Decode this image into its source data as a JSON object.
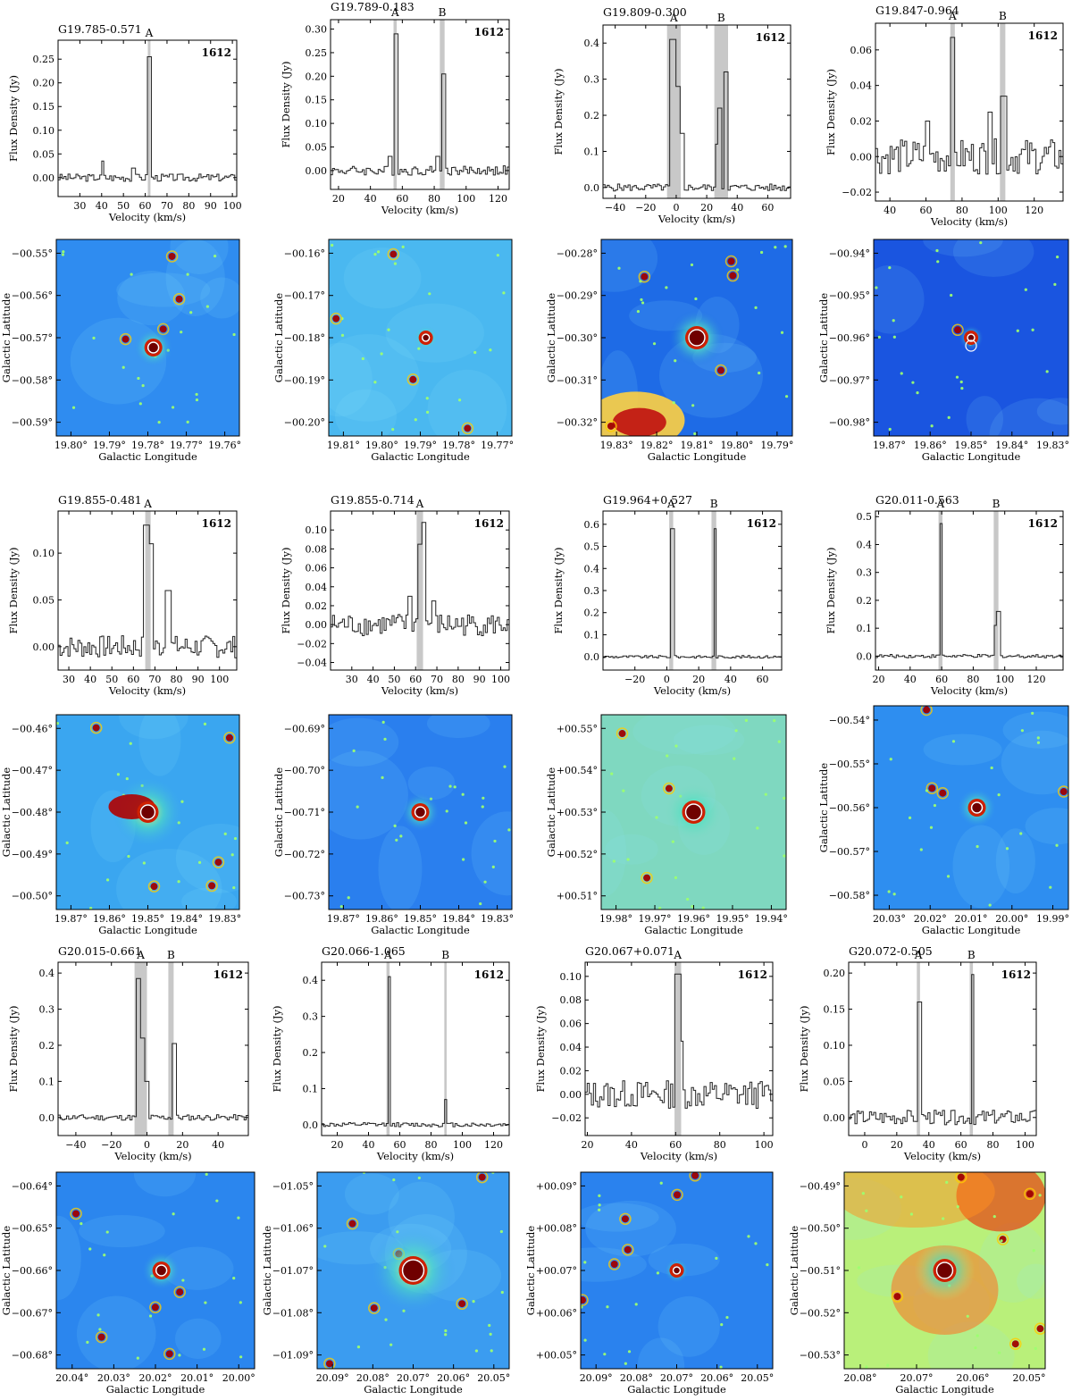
{
  "common": {
    "spec_ylabel": "Flux Density (Jy)",
    "spec_xlabel": "Velocity (km/s)",
    "map_ylabel": "Galactic Latitude",
    "map_xlabel": "Galactic Longitude",
    "line_label": "1612"
  },
  "chart_data": [
    {
      "type": "line",
      "title": "G19.785-0.571",
      "xlim": [
        20,
        102
      ],
      "ylim": [
        -0.04,
        0.29
      ],
      "xticks": [
        "30",
        "40",
        "50",
        "60",
        "70",
        "80",
        "90",
        "100"
      ],
      "xtick_vals": [
        30,
        40,
        50,
        60,
        70,
        80,
        90,
        100
      ],
      "yticks": [
        "0.00",
        "0.05",
        "0.10",
        "0.15",
        "0.20",
        "0.25"
      ],
      "ytick_vals": [
        0,
        0.05,
        0.1,
        0.15,
        0.2,
        0.25
      ],
      "bands": [
        {
          "name": "A",
          "x0": 61.2,
          "x1": 62.4
        }
      ],
      "peaks": [
        {
          "x": 61.8,
          "y": 0.255,
          "w": 0.8
        }
      ],
      "noise": 0.008,
      "bumps": [
        {
          "x": 40,
          "y": 0.035
        },
        {
          "x": 54,
          "y": 0.02
        }
      ]
    },
    {
      "type": "line",
      "title": "G19.789-0.183",
      "xlim": [
        15,
        127
      ],
      "ylim": [
        -0.04,
        0.32
      ],
      "xticks": [
        "20",
        "40",
        "60",
        "80",
        "100",
        "120"
      ],
      "xtick_vals": [
        20,
        40,
        60,
        80,
        100,
        120
      ],
      "yticks": [
        "0.00",
        "0.05",
        "0.10",
        "0.15",
        "0.20",
        "0.25",
        "0.30"
      ],
      "ytick_vals": [
        0,
        0.05,
        0.1,
        0.15,
        0.2,
        0.25,
        0.3
      ],
      "bands": [
        {
          "name": "A",
          "x0": 54.5,
          "x1": 56.5
        },
        {
          "name": "B",
          "x0": 83.5,
          "x1": 86.5
        }
      ],
      "peaks": [
        {
          "x": 55.5,
          "y": 0.29,
          "w": 1
        },
        {
          "x": 85.3,
          "y": 0.205,
          "w": 1.3
        }
      ],
      "noise": 0.01,
      "bumps": [
        {
          "x": 52,
          "y": 0.03
        },
        {
          "x": 82,
          "y": 0.03
        }
      ]
    },
    {
      "type": "line",
      "title": "G19.809-0.300",
      "xlim": [
        -48,
        75
      ],
      "ylim": [
        -0.03,
        0.45
      ],
      "xticks": [
        "−40",
        "−20",
        "0",
        "20",
        "40",
        "60"
      ],
      "xtick_vals": [
        -40,
        -20,
        0,
        20,
        40,
        60
      ],
      "yticks": [
        "0.0",
        "0.1",
        "0.2",
        "0.3",
        "0.4"
      ],
      "ytick_vals": [
        0,
        0.1,
        0.2,
        0.3,
        0.4
      ],
      "bands": [
        {
          "name": "A",
          "x0": -6,
          "x1": 3
        },
        {
          "name": "B",
          "x0": 25,
          "x1": 34
        }
      ],
      "peaks": [
        {
          "x": -3,
          "y": 0.41,
          "w": 1.5
        },
        {
          "x": 0,
          "y": 0.28,
          "w": 1.5
        },
        {
          "x": 2,
          "y": 0.15,
          "w": 2
        },
        {
          "x": 28,
          "y": 0.22,
          "w": 1.5
        },
        {
          "x": 31.5,
          "y": 0.32,
          "w": 1.3
        },
        {
          "x": 26,
          "y": 0.12,
          "w": 1.5
        }
      ],
      "noise": 0.01,
      "bumps": []
    },
    {
      "type": "line",
      "title": "G19.847-0.964",
      "xlim": [
        32,
        136
      ],
      "ylim": [
        -0.025,
        0.075
      ],
      "xticks": [
        "40",
        "60",
        "80",
        "100",
        "120"
      ],
      "xtick_vals": [
        40,
        60,
        80,
        100,
        120
      ],
      "yticks": [
        "−0.02",
        "0.00",
        "0.02",
        "0.04",
        "0.06"
      ],
      "ytick_vals": [
        -0.02,
        0,
        0.02,
        0.04,
        0.06
      ],
      "bands": [
        {
          "name": "A",
          "x0": 73.5,
          "x1": 76
        },
        {
          "name": "B",
          "x0": 101,
          "x1": 104
        }
      ],
      "peaks": [
        {
          "x": 74.5,
          "y": 0.067,
          "w": 1
        },
        {
          "x": 102.5,
          "y": 0.034,
          "w": 1.3
        }
      ],
      "noise": 0.01,
      "bumps": [
        {
          "x": 60,
          "y": 0.02
        },
        {
          "x": 95,
          "y": 0.025
        }
      ]
    },
    {
      "type": "line",
      "title": "G19.855-0.481",
      "xlim": [
        25,
        108
      ],
      "ylim": [
        -0.025,
        0.145
      ],
      "xticks": [
        "30",
        "40",
        "50",
        "60",
        "70",
        "80",
        "90",
        "100"
      ],
      "xtick_vals": [
        30,
        40,
        50,
        60,
        70,
        80,
        90,
        100
      ],
      "yticks": [
        "0.00",
        "0.05",
        "0.10"
      ],
      "ytick_vals": [
        0,
        0.05,
        0.1
      ],
      "bands": [
        {
          "name": "A",
          "x0": 65.5,
          "x1": 68
        }
      ],
      "peaks": [
        {
          "x": 65.5,
          "y": 0.13,
          "w": 1.2
        },
        {
          "x": 67,
          "y": 0.11,
          "w": 1.5
        },
        {
          "x": 75.5,
          "y": 0.06,
          "w": 1.5
        }
      ],
      "noise": 0.012,
      "bumps": []
    },
    {
      "type": "line",
      "title": "G19.855-0.714",
      "xlim": [
        20,
        104
      ],
      "ylim": [
        -0.048,
        0.12
      ],
      "xticks": [
        "30",
        "40",
        "50",
        "60",
        "70",
        "80",
        "90",
        "100"
      ],
      "xtick_vals": [
        30,
        40,
        50,
        60,
        70,
        80,
        90,
        100
      ],
      "yticks": [
        "−0.04",
        "−0.02",
        "0.00",
        "0.02",
        "0.04",
        "0.06",
        "0.08",
        "0.10"
      ],
      "ytick_vals": [
        -0.04,
        -0.02,
        0,
        0.02,
        0.04,
        0.06,
        0.08,
        0.1
      ],
      "bands": [
        {
          "name": "A",
          "x0": 60.5,
          "x1": 63.5
        }
      ],
      "peaks": [
        {
          "x": 61.5,
          "y": 0.085,
          "w": 1
        },
        {
          "x": 63,
          "y": 0.108,
          "w": 1
        }
      ],
      "noise": 0.012,
      "bumps": [
        {
          "x": 57,
          "y": 0.03
        },
        {
          "x": 68,
          "y": 0.025
        }
      ]
    },
    {
      "type": "line",
      "title": "G19.964+0.527",
      "xlim": [
        -40,
        72
      ],
      "ylim": [
        -0.06,
        0.66
      ],
      "xticks": [
        "−20",
        "0",
        "20",
        "40",
        "60"
      ],
      "xtick_vals": [
        -20,
        0,
        20,
        40,
        60
      ],
      "yticks": [
        "0.0",
        "0.1",
        "0.2",
        "0.3",
        "0.4",
        "0.5",
        "0.6"
      ],
      "ytick_vals": [
        0,
        0.1,
        0.2,
        0.3,
        0.4,
        0.5,
        0.6
      ],
      "bands": [
        {
          "name": "A",
          "x0": 1.5,
          "x1": 4
        },
        {
          "name": "B",
          "x0": 28,
          "x1": 31
        }
      ],
      "peaks": [
        {
          "x": 2.8,
          "y": 0.58,
          "w": 1
        },
        {
          "x": 29.8,
          "y": 0.58,
          "w": 1
        }
      ],
      "noise": 0.006,
      "bumps": []
    },
    {
      "type": "line",
      "title": "G20.011-0.563",
      "xlim": [
        18,
        137
      ],
      "ylim": [
        -0.05,
        0.52
      ],
      "xticks": [
        "20",
        "40",
        "60",
        "80",
        "100",
        "120"
      ],
      "xtick_vals": [
        20,
        40,
        60,
        80,
        100,
        120
      ],
      "yticks": [
        "0.0",
        "0.1",
        "0.2",
        "0.3",
        "0.4",
        "0.5"
      ],
      "ytick_vals": [
        0,
        0.1,
        0.2,
        0.3,
        0.4,
        0.5
      ],
      "bands": [
        {
          "name": "A",
          "x0": 58,
          "x1": 60.5
        },
        {
          "name": "B",
          "x0": 93,
          "x1": 96
        }
      ],
      "peaks": [
        {
          "x": 59,
          "y": 0.475,
          "w": 1
        },
        {
          "x": 95,
          "y": 0.16,
          "w": 1.3
        },
        {
          "x": 93.5,
          "y": 0.11,
          "w": 1
        }
      ],
      "noise": 0.006,
      "bumps": []
    },
    {
      "type": "line",
      "title": "G20.015-0.661",
      "xlim": [
        -50,
        57
      ],
      "ylim": [
        -0.05,
        0.43
      ],
      "xticks": [
        "−40",
        "−20",
        "0",
        "20",
        "40"
      ],
      "xtick_vals": [
        -40,
        -20,
        0,
        20,
        40
      ],
      "yticks": [
        "0.0",
        "0.1",
        "0.2",
        "0.3",
        "0.4"
      ],
      "ytick_vals": [
        0,
        0.1,
        0.2,
        0.3,
        0.4
      ],
      "bands": [
        {
          "name": "A",
          "x0": -7,
          "x1": 0
        },
        {
          "name": "B",
          "x0": 12,
          "x1": 15
        }
      ],
      "peaks": [
        {
          "x": -5.5,
          "y": 0.385,
          "w": 1.5
        },
        {
          "x": -3.5,
          "y": 0.22,
          "w": 1.5
        },
        {
          "x": -1.5,
          "y": 0.1,
          "w": 1.5
        },
        {
          "x": 15,
          "y": 0.205,
          "w": 1.5
        }
      ],
      "noise": 0.008,
      "bumps": []
    },
    {
      "type": "line",
      "title": "G20.066-1.065",
      "xlim": [
        10,
        130
      ],
      "ylim": [
        -0.03,
        0.45
      ],
      "xticks": [
        "20",
        "40",
        "60",
        "80",
        "100",
        "120"
      ],
      "xtick_vals": [
        20,
        40,
        60,
        80,
        100,
        120
      ],
      "yticks": [
        "0.0",
        "0.1",
        "0.2",
        "0.3",
        "0.4"
      ],
      "ytick_vals": [
        0,
        0.1,
        0.2,
        0.3,
        0.4
      ],
      "bands": [
        {
          "name": "A",
          "x0": 51.5,
          "x1": 53.5
        },
        {
          "name": "B",
          "x0": 88.5,
          "x1": 90
        }
      ],
      "peaks": [
        {
          "x": 52.5,
          "y": 0.41,
          "w": 1
        },
        {
          "x": 89,
          "y": 0.07,
          "w": 0.8
        }
      ],
      "noise": 0.006,
      "bumps": []
    },
    {
      "type": "line",
      "title": "G20.067+0.071",
      "xlim": [
        19,
        104
      ],
      "ylim": [
        -0.035,
        0.112
      ],
      "xticks": [
        "20",
        "40",
        "60",
        "80",
        "100"
      ],
      "xtick_vals": [
        20,
        40,
        60,
        80,
        100
      ],
      "yticks": [
        "−0.02",
        "0.00",
        "0.02",
        "0.04",
        "0.06",
        "0.08",
        "0.10"
      ],
      "ytick_vals": [
        -0.02,
        0,
        0.02,
        0.04,
        0.06,
        0.08,
        0.1
      ],
      "bands": [
        {
          "name": "A",
          "x0": 59.5,
          "x1": 62.5
        }
      ],
      "peaks": [
        {
          "x": 60.5,
          "y": 0.102,
          "w": 1
        },
        {
          "x": 62,
          "y": 0.045,
          "w": 1
        }
      ],
      "noise": 0.012,
      "bumps": []
    },
    {
      "type": "line",
      "title": "G20.072-0.505",
      "xlim": [
        -10,
        107
      ],
      "ylim": [
        -0.025,
        0.215
      ],
      "xticks": [
        "0",
        "20",
        "40",
        "60",
        "80",
        "100"
      ],
      "xtick_vals": [
        0,
        20,
        40,
        60,
        80,
        100
      ],
      "yticks": [
        "0.00",
        "0.05",
        "0.10",
        "0.15",
        "0.20"
      ],
      "ytick_vals": [
        0,
        0.05,
        0.1,
        0.15,
        0.2
      ],
      "bands": [
        {
          "name": "A",
          "x0": 32.5,
          "x1": 34.5
        },
        {
          "name": "B",
          "x0": 65.5,
          "x1": 67.5
        }
      ],
      "peaks": [
        {
          "x": 33.5,
          "y": 0.16,
          "w": 1
        },
        {
          "x": 66.5,
          "y": 0.198,
          "w": 1
        }
      ],
      "noise": 0.01,
      "bumps": []
    }
  ],
  "maps": [
    {
      "xticks": [
        "19.80°",
        "19.79°",
        "19.78°",
        "19.77°",
        "19.76°"
      ],
      "yticks": [
        "−00.55°",
        "−00.56°",
        "−00.57°",
        "−00.58°",
        "−00.59°"
      ],
      "bg": "#2f8cf0",
      "src": [
        0.53,
        0.55
      ],
      "src_size": "medium"
    },
    {
      "xticks": [
        "19.81°",
        "19.80°",
        "19.79°",
        "19.78°",
        "19.77°"
      ],
      "yticks": [
        "−00.16°",
        "−00.17°",
        "−00.18°",
        "−00.19°",
        "−00.20°"
      ],
      "bg": "#4ab8f0",
      "src": [
        0.53,
        0.5
      ],
      "src_size": "small"
    },
    {
      "xticks": [
        "19.83°",
        "19.82°",
        "19.81°",
        "19.80°",
        "19.79°"
      ],
      "yticks": [
        "−00.28°",
        "−00.29°",
        "−00.30°",
        "−00.31°",
        "−00.32°"
      ],
      "bg": "#1e6be6",
      "src": [
        0.5,
        0.5
      ],
      "src_size": "large"
    },
    {
      "xticks": [
        "19.87°",
        "19.86°",
        "19.85°",
        "19.84°",
        "19.83°"
      ],
      "yticks": [
        "−00.94°",
        "−00.95°",
        "−00.96°",
        "−00.97°",
        "−00.98°"
      ],
      "bg": "#1a55e0",
      "src": [
        0.5,
        0.5
      ],
      "src_size": "small"
    },
    {
      "xticks": [
        "19.87°",
        "19.86°",
        "19.85°",
        "19.84°",
        "19.83°"
      ],
      "yticks": [
        "−00.46°",
        "−00.47°",
        "−00.48°",
        "−00.49°",
        "−00.50°"
      ],
      "bg": "#3aa6f0",
      "src": [
        0.5,
        0.5
      ],
      "src_size": "diffuse"
    },
    {
      "xticks": [
        "19.87°",
        "19.86°",
        "19.85°",
        "19.84°",
        "19.83°"
      ],
      "yticks": [
        "−00.69°",
        "−00.70°",
        "−00.71°",
        "−00.72°",
        "−00.73°"
      ],
      "bg": "#2a7fee",
      "src": [
        0.5,
        0.5
      ],
      "src_size": "medium"
    },
    {
      "xticks": [
        "19.98°",
        "19.97°",
        "19.96°",
        "19.95°",
        "19.94°"
      ],
      "yticks": [
        "+00.55°",
        "+00.54°",
        "+00.53°",
        "+00.52°",
        "+00.51°"
      ],
      "bg": "#7fd8c0",
      "src": [
        0.5,
        0.5
      ],
      "src_size": "large"
    },
    {
      "xticks": [
        "20.03°",
        "20.02°",
        "20.01°",
        "20.00°",
        "19.99°"
      ],
      "yticks": [
        "−00.54°",
        "−00.55°",
        "−00.56°",
        "−00.57°",
        "−00.58°"
      ],
      "bg": "#2e8ef0",
      "src": [
        0.53,
        0.5
      ],
      "src_size": "medium"
    },
    {
      "xticks": [
        "20.04°",
        "20.03°",
        "20.02°",
        "20.01°",
        "20.00°"
      ],
      "yticks": [
        "−00.64°",
        "−00.65°",
        "−00.66°",
        "−00.67°",
        "−00.68°"
      ],
      "bg": "#2b86ee",
      "src": [
        0.53,
        0.5
      ],
      "src_size": "medium"
    },
    {
      "xticks": [
        "20.09°",
        "20.08°",
        "20.07°",
        "20.06°",
        "20.05°"
      ],
      "yticks": [
        "−01.05°",
        "−01.06°",
        "−01.07°",
        "−01.08°",
        "−01.09°"
      ],
      "bg": "#3b9cf0",
      "src": [
        0.5,
        0.5
      ],
      "src_size": "huge"
    },
    {
      "xticks": [
        "20.09°",
        "20.08°",
        "20.07°",
        "20.06°",
        "20.05°"
      ],
      "yticks": [
        "+00.09°",
        "+00.08°",
        "+00.07°",
        "+00.06°",
        "+00.05°"
      ],
      "bg": "#2a82ee",
      "src": [
        0.5,
        0.5
      ],
      "src_size": "small"
    },
    {
      "xticks": [
        "20.08°",
        "20.07°",
        "20.06°",
        "20.05°"
      ],
      "yticks": [
        "−00.49°",
        "−00.50°",
        "−00.51°",
        "−00.52°",
        "−00.53°"
      ],
      "bg": "#b9f07a",
      "src": [
        0.5,
        0.5
      ],
      "src_size": "warm"
    }
  ]
}
